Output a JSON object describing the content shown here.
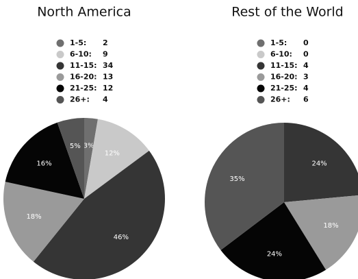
{
  "chart_data": [
    {
      "type": "pie",
      "title": "North America",
      "categories": [
        "1-5:",
        "6-10:",
        "11-15:",
        "16-20:",
        "21-25:",
        "26+:"
      ],
      "values": [
        2,
        9,
        34,
        13,
        12,
        4
      ],
      "value_labels": [
        "3%",
        "12%",
        "46%",
        "18%",
        "16%",
        "5%"
      ],
      "colors": [
        "#6f6f6f",
        "#c9c9c9",
        "#353535",
        "#9a9a9a",
        "#050505",
        "#555555"
      ]
    },
    {
      "type": "pie",
      "title": "Rest of the World",
      "categories": [
        "1-5:",
        "6-10:",
        "11-15:",
        "16-20:",
        "21-25:",
        "26+:"
      ],
      "values": [
        0,
        0,
        4,
        3,
        4,
        6
      ],
      "value_labels": [
        null,
        null,
        "24%",
        "18%",
        "24%",
        "35%"
      ],
      "colors": [
        "#6f6f6f",
        "#c9c9c9",
        "#353535",
        "#9a9a9a",
        "#050505",
        "#555555"
      ]
    }
  ]
}
